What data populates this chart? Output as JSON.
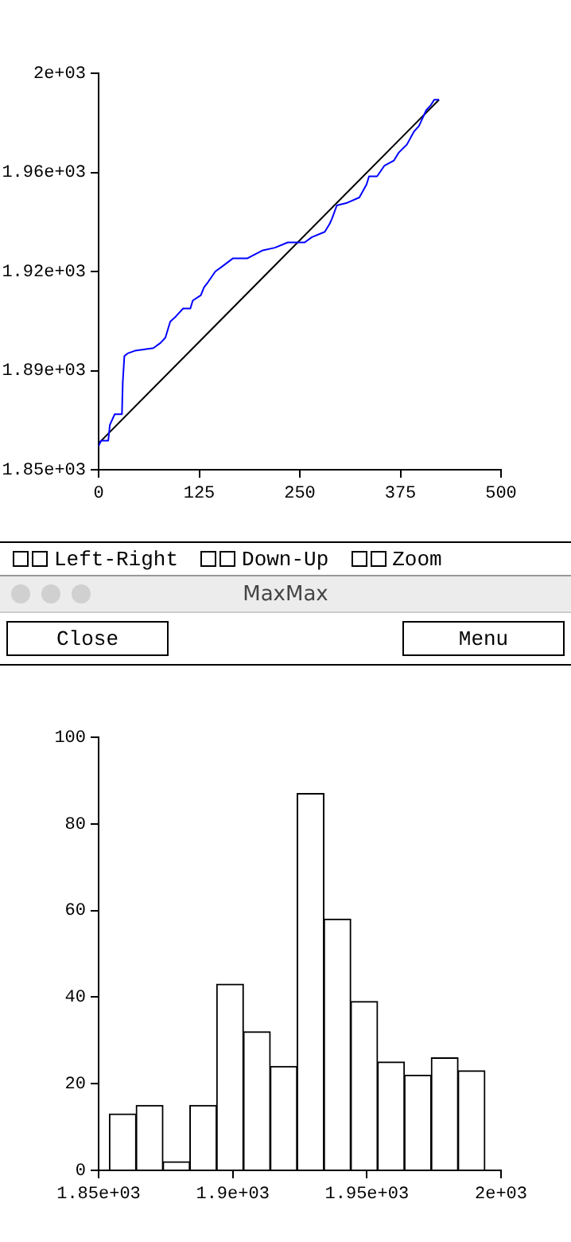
{
  "chart_data": [
    {
      "type": "line",
      "xlim": [
        0,
        500
      ],
      "xticks": [
        0,
        125,
        250,
        375,
        500
      ],
      "ylim": [
        1850,
        2000
      ],
      "yticks": [
        {
          "value": 1850,
          "label": "1.85e+03"
        },
        {
          "value": 1887.5,
          "label": "1.89e+03"
        },
        {
          "value": 1925,
          "label": "1.92e+03"
        },
        {
          "value": 1962.5,
          "label": "1.96e+03"
        },
        {
          "value": 2000,
          "label": "2e+03"
        }
      ],
      "marker": "none",
      "series": [
        {
          "color": "#0000ff",
          "x": [
            0,
            3,
            12,
            14,
            20,
            29,
            30,
            32,
            36,
            45,
            68,
            77,
            83,
            89,
            96,
            105,
            114,
            117,
            127,
            131,
            136,
            145,
            154,
            167,
            185,
            204,
            219,
            235,
            256,
            265,
            281,
            287,
            290,
            296,
            309,
            324,
            333,
            336,
            346,
            355,
            367,
            373,
            383,
            392,
            398,
            407,
            413,
            417,
            423
          ],
          "values": [
            1859,
            1861,
            1861,
            1867,
            1871,
            1871,
            1883,
            1893,
            1894,
            1895,
            1896,
            1898,
            1900,
            1906,
            1908,
            1911,
            1911,
            1914,
            1916,
            1919,
            1921,
            1925,
            1927,
            1930,
            1930,
            1933,
            1934,
            1936,
            1936,
            1938,
            1940,
            1943,
            1945,
            1950,
            1951,
            1953,
            1958,
            1961,
            1961,
            1965,
            1967,
            1970,
            1973,
            1978,
            1980,
            1986,
            1988,
            1990,
            1990
          ]
        },
        {
          "color": "#000000",
          "x": [
            0,
            423
          ],
          "values": [
            1860,
            1990
          ]
        }
      ]
    },
    {
      "type": "other",
      "title": "MaxMax",
      "annotations": [
        "Left-Right",
        "Down-Up",
        "Zoom",
        "Close",
        "Menu"
      ]
    },
    {
      "type": "histogram",
      "color": "#ffffff",
      "bins": [
        1854,
        1864,
        1874,
        1884,
        1894,
        1904,
        1914,
        1924,
        1934,
        1944,
        1954,
        1964,
        1974,
        1984,
        1994
      ],
      "values": [
        13,
        15,
        2,
        15,
        43,
        32,
        24,
        87,
        58,
        39,
        25,
        22,
        26,
        23
      ],
      "xlim": [
        1850,
        2000
      ],
      "xticks": [
        {
          "value": 1850,
          "label": "1.85e+03"
        },
        {
          "value": 1900,
          "label": "1.9e+03"
        },
        {
          "value": 1950,
          "label": "1.95e+03"
        },
        {
          "value": 2000,
          "label": "2e+03"
        }
      ],
      "ylim": [
        0,
        100
      ],
      "yticks": [
        0,
        20,
        40,
        60,
        80,
        100
      ]
    }
  ]
}
